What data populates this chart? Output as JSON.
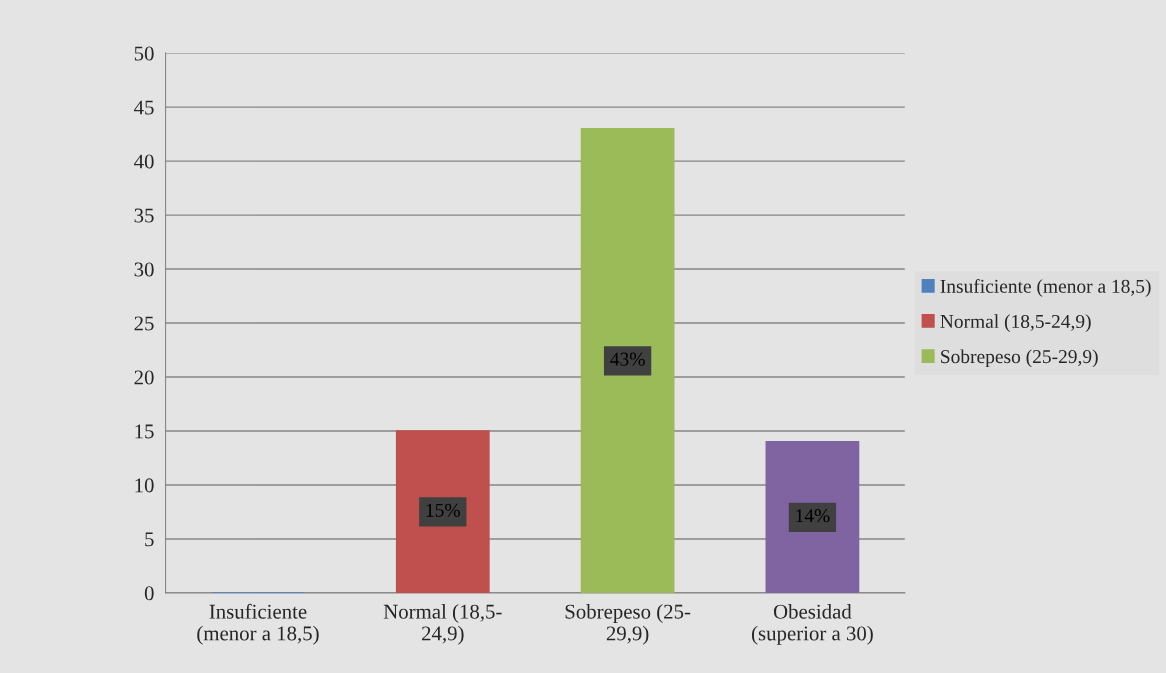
{
  "chart_data": {
    "type": "bar",
    "categories": [
      "Insuficiente\n(menor a 18,5)",
      "Normal (18,5-\n24,9)",
      "Sobrepeso (25-\n29,9)",
      "Obesidad\n(superior a 30)"
    ],
    "series": [
      {
        "name": "Insuficiente (menor a 18,5)",
        "color": "#4f81bd",
        "values": [
          0,
          null,
          null,
          null
        ],
        "value_labels": [
          null,
          null,
          null,
          null
        ]
      },
      {
        "name": "Normal (18,5-24,9)",
        "color": "#c0504d",
        "values": [
          null,
          15,
          null,
          null
        ],
        "value_labels": [
          null,
          "15%",
          null,
          null
        ]
      },
      {
        "name": "Sobrepeso (25-29,9)",
        "color": "#9bbb59",
        "values": [
          null,
          null,
          43,
          null
        ],
        "value_labels": [
          null,
          null,
          "43%",
          null
        ]
      },
      {
        "color": "#8064a2",
        "values": [
          null,
          null,
          null,
          14
        ],
        "value_labels": [
          null,
          null,
          null,
          "14%"
        ]
      }
    ],
    "ylim": [
      0,
      50
    ],
    "yticks": [
      0,
      5,
      10,
      15,
      20,
      25,
      30,
      35,
      40,
      45,
      50
    ],
    "grid": "y",
    "legend": "right"
  }
}
